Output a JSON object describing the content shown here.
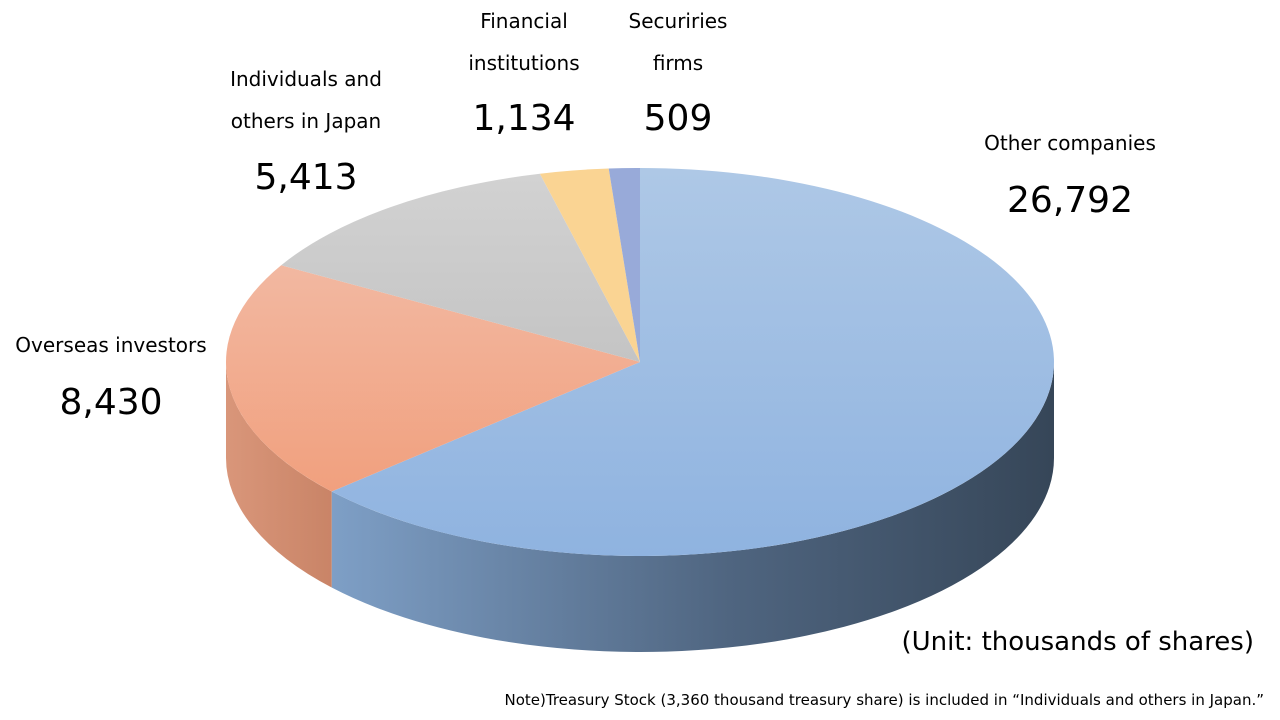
{
  "chart_data": {
    "type": "pie",
    "style": "3d",
    "slices": [
      {
        "label": "Other companies",
        "value": 26792,
        "display": "26,792",
        "color": "#95b7e2"
      },
      {
        "label": "Overseas investors",
        "value": 8430,
        "display": "8,430",
        "color": "#f2a482"
      },
      {
        "label": "Individuals and\nothers in Japan",
        "value": 5413,
        "display": "5,413",
        "color": "#c8c8c8"
      },
      {
        "label": "Financial\ninstitutions",
        "value": 1134,
        "display": "1,134",
        "color": "#fad493"
      },
      {
        "label": "Securiries\nfirms",
        "value": 509,
        "display": "509",
        "color": "#98aad9"
      }
    ],
    "unit_note": "(Unit: thousands of shares)",
    "footnote": "Note)Treasury Stock (3,360 thousand treasury share) is included in “Individuals and others in Japan.”"
  }
}
